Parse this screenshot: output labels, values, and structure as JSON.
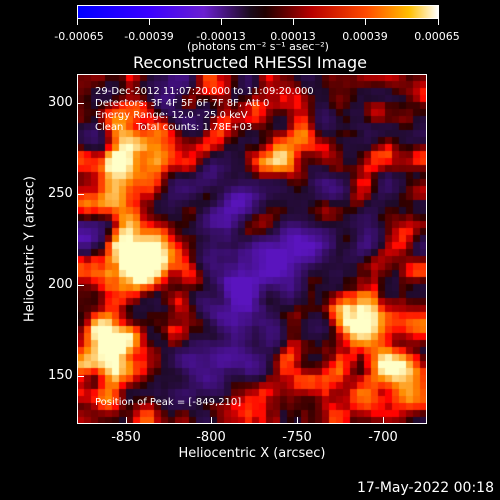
{
  "colorbar": {
    "ticks": [
      "-0.00065",
      "-0.00039",
      "-0.00013",
      "0.00013",
      "0.00039",
      "0.00065"
    ],
    "unit": "(photons cm⁻² s⁻¹ asec⁻²)"
  },
  "title": "Reconstructed RHESSI Image",
  "info": {
    "line1": "29-Dec-2012 11:07:20.000 to 11:09:20.000",
    "line2": "Detectors: 3F 4F 5F 6F 7F 8F, Att 0",
    "line3": "Energy Range: 12.0 - 25.0 keV",
    "line4": "Clean    Total counts: 1.78E+03"
  },
  "peak": "Position of Peak = [-849,210]",
  "axes": {
    "xlabel": "Heliocentric X (arcsec)",
    "ylabel": "Heliocentric Y (arcsec)",
    "xticks": [
      "-850",
      "-800",
      "-750",
      "-700"
    ],
    "yticks": [
      "300",
      "250",
      "200",
      "150"
    ]
  },
  "timestamp": "17-May-2022 00:18"
}
